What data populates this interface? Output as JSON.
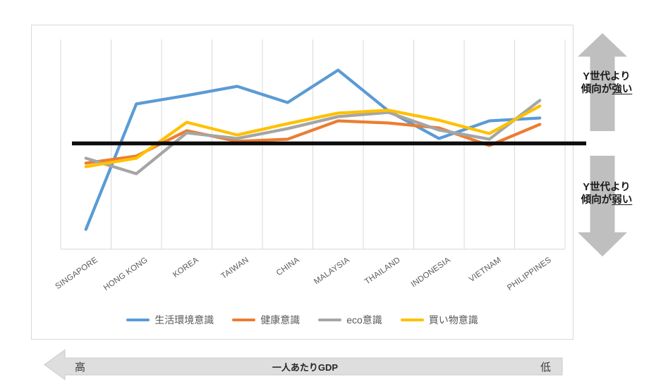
{
  "chart_data": {
    "type": "line",
    "title": "",
    "categories": [
      "SINGAPORE",
      "HONG KONG",
      "KOREA",
      "TAIWAN",
      "CHINA",
      "MALAYSIA",
      "THAILAND",
      "INDONESIA",
      "VIETNAM",
      "PHILIPPINES"
    ],
    "series": [
      {
        "name": "生活環境意識",
        "color": "#5B9BD5",
        "values": [
          -1.22,
          0.56,
          0.68,
          0.81,
          0.58,
          1.04,
          0.46,
          0.07,
          0.32,
          0.36
        ]
      },
      {
        "name": "健康意識",
        "color": "#ED7D31",
        "values": [
          -0.28,
          -0.18,
          0.18,
          0.03,
          0.06,
          0.32,
          0.29,
          0.22,
          -0.03,
          0.27
        ]
      },
      {
        "name": "eco意識",
        "color": "#A5A5A5",
        "values": [
          -0.21,
          -0.43,
          0.15,
          0.07,
          0.21,
          0.38,
          0.44,
          0.19,
          0.06,
          0.61
        ]
      },
      {
        "name": "買い物意識",
        "color": "#FFC000",
        "values": [
          -0.33,
          -0.21,
          0.3,
          0.12,
          0.28,
          0.43,
          0.47,
          0.33,
          0.14,
          0.53
        ]
      }
    ],
    "baseline": {
      "value": 0,
      "color": "#0D0D0D"
    },
    "ylim": [
      -1.5,
      1.5
    ],
    "xlabel": "",
    "ylabel": "",
    "grid": "vertical-only",
    "y_axis_labels": "none",
    "legend_position": "bottom"
  },
  "annotations": {
    "arrow_color": "#BFBFBF",
    "stronger": {
      "line1": "Y世代より",
      "line2_prefix": "傾向が",
      "line2_emph": "強い"
    },
    "weaker": {
      "line1": "Y世代より",
      "line2_prefix": "傾向が",
      "line2_emph": "弱い"
    }
  },
  "gdp_axis": {
    "high_label": "高",
    "axis_label": "一人あたりGDP",
    "low_label": "低"
  }
}
